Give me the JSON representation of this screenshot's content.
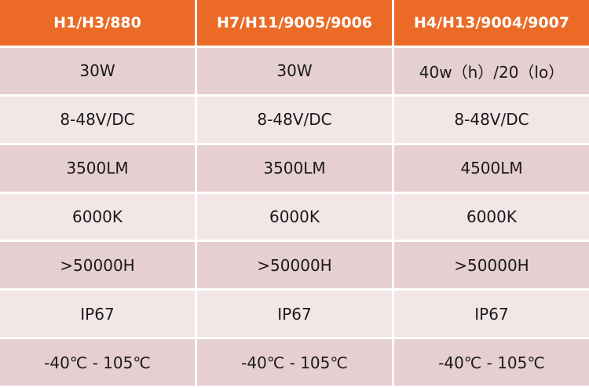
{
  "table": {
    "header": [
      "H1/H3/880",
      "H7/H11/9005/9006",
      "H4/H13/9004/9007"
    ],
    "rows": [
      [
        "30W",
        "30W",
        "40w（h）/20（lo）"
      ],
      [
        "8-48V/DC",
        "8-48V/DC",
        "8-48V/DC"
      ],
      [
        "3500LM",
        "3500LM",
        "4500LM"
      ],
      [
        "6000K",
        "6000K",
        "6000K"
      ],
      [
        ">50000H",
        ">50000H",
        ">50000H"
      ],
      [
        "IP67",
        "IP67",
        "IP67"
      ],
      [
        "-40℃ - 105℃",
        "-40℃ - 105℃",
        "-40℃ - 105℃"
      ]
    ]
  }
}
